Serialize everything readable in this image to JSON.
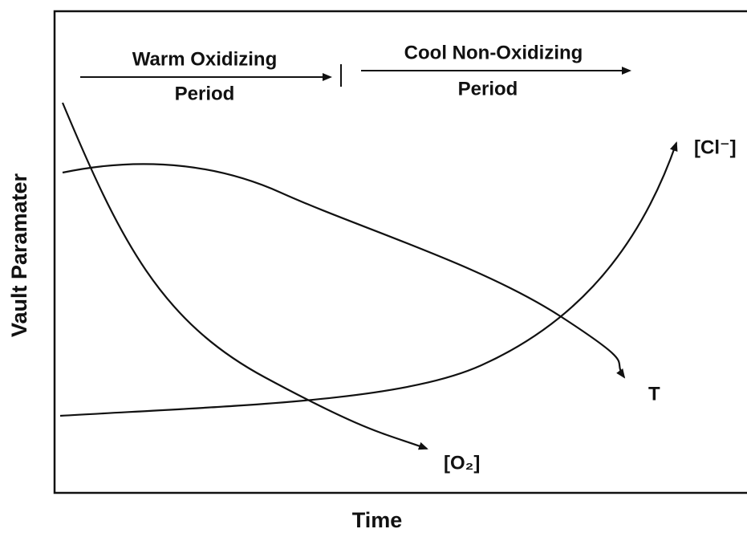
{
  "axes": {
    "x_label": "Time",
    "y_label": "Vault Paramater"
  },
  "periods": [
    {
      "line1": "Warm Oxidizing",
      "line2": "Period"
    },
    {
      "line1": "Cool Non-Oxidizing",
      "line2": "Period"
    }
  ],
  "curves": [
    {
      "label": "[Cl⁻]"
    },
    {
      "label": "T"
    },
    {
      "label": "[O₂]"
    }
  ]
}
